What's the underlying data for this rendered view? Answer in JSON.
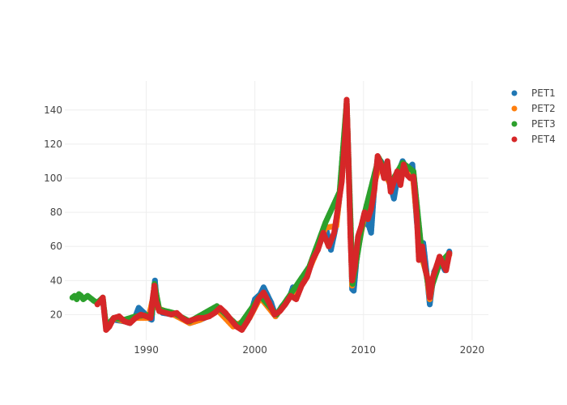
{
  "chart_data": {
    "type": "scatter",
    "title": "",
    "xlabel": "",
    "ylabel": "",
    "xlim": [
      1982.5,
      2021.5
    ],
    "ylim": [
      5,
      157
    ],
    "x_ticks": [
      1990,
      2000,
      2010,
      2020
    ],
    "x_tick_labels": [
      "1990",
      "2000",
      "2010",
      "2020"
    ],
    "y_ticks": [
      20,
      40,
      60,
      80,
      100,
      120,
      140
    ],
    "y_tick_labels": [
      "20",
      "40",
      "60",
      "80",
      "100",
      "120",
      "140"
    ],
    "grid": true,
    "legend_position": "top-right",
    "series": [
      {
        "name": "PET1",
        "color": "#1f77b4",
        "points": [
          [
            1986.0,
            28
          ],
          [
            1986.3,
            14
          ],
          [
            1987.0,
            17
          ],
          [
            1988.0,
            16
          ],
          [
            1988.5,
            15
          ],
          [
            1989.0,
            19
          ],
          [
            1989.3,
            24
          ],
          [
            1989.8,
            21
          ],
          [
            1990.2,
            18
          ],
          [
            1990.5,
            17
          ],
          [
            1990.7,
            34
          ],
          [
            1990.8,
            40
          ],
          [
            1991.0,
            25
          ],
          [
            1991.5,
            21
          ],
          [
            1992.5,
            20
          ],
          [
            1993.5,
            17
          ],
          [
            1994.0,
            15
          ],
          [
            1995.0,
            17
          ],
          [
            1996.0,
            20
          ],
          [
            1996.5,
            24
          ],
          [
            1997.0,
            22
          ],
          [
            1998.0,
            14
          ],
          [
            1998.8,
            12
          ],
          [
            1999.5,
            18
          ],
          [
            2000.0,
            29
          ],
          [
            2000.5,
            32
          ],
          [
            2000.8,
            36
          ],
          [
            2001.5,
            27
          ],
          [
            2001.9,
            19
          ],
          [
            2002.5,
            25
          ],
          [
            2003.2,
            30
          ],
          [
            2003.5,
            36
          ],
          [
            2004.0,
            33
          ],
          [
            2004.5,
            40
          ],
          [
            2004.9,
            45
          ],
          [
            2005.5,
            55
          ],
          [
            2006.0,
            62
          ],
          [
            2006.5,
            72
          ],
          [
            2007.0,
            58
          ],
          [
            2007.5,
            73
          ],
          [
            2007.9,
            95
          ],
          [
            2008.2,
            112
          ],
          [
            2008.45,
            144
          ],
          [
            2008.8,
            70
          ],
          [
            2008.95,
            35
          ],
          [
            2009.1,
            34
          ],
          [
            2009.4,
            55
          ],
          [
            2009.7,
            68
          ],
          [
            2010.0,
            75
          ],
          [
            2010.5,
            72
          ],
          [
            2010.7,
            68
          ],
          [
            2011.0,
            95
          ],
          [
            2011.3,
            112
          ],
          [
            2011.6,
            110
          ],
          [
            2012.0,
            105
          ],
          [
            2012.5,
            95
          ],
          [
            2012.8,
            88
          ],
          [
            2013.2,
            103
          ],
          [
            2013.6,
            110
          ],
          [
            2014.0,
            105
          ],
          [
            2014.5,
            108
          ],
          [
            2014.9,
            75
          ],
          [
            2015.2,
            55
          ],
          [
            2015.5,
            62
          ],
          [
            2015.8,
            45
          ],
          [
            2016.1,
            26
          ],
          [
            2016.5,
            45
          ],
          [
            2017.0,
            52
          ],
          [
            2017.5,
            46
          ],
          [
            2017.9,
            57
          ]
        ]
      },
      {
        "name": "PET2",
        "color": "#ff7f0e",
        "points": [
          [
            1986.0,
            29
          ],
          [
            1986.3,
            13
          ],
          [
            1987.0,
            18
          ],
          [
            1988.0,
            16
          ],
          [
            1989.0,
            18
          ],
          [
            1990.2,
            18
          ],
          [
            1990.7,
            32
          ],
          [
            1991.0,
            24
          ],
          [
            1992.5,
            20
          ],
          [
            1994.0,
            15
          ],
          [
            1995.0,
            17
          ],
          [
            1996.5,
            23
          ],
          [
            1998.0,
            13
          ],
          [
            1999.5,
            18
          ],
          [
            2000.5,
            30
          ],
          [
            2001.9,
            19
          ],
          [
            2003.2,
            30
          ],
          [
            2004.5,
            39
          ],
          [
            2005.5,
            54
          ],
          [
            2006.5,
            71
          ],
          [
            2007.5,
            72
          ],
          [
            2008.2,
            114
          ],
          [
            2008.45,
            143
          ],
          [
            2008.95,
            37
          ],
          [
            2009.4,
            56
          ],
          [
            2010.0,
            75
          ],
          [
            2011.0,
            97
          ],
          [
            2011.5,
            108
          ],
          [
            2012.5,
            96
          ],
          [
            2013.5,
            106
          ],
          [
            2014.5,
            104
          ],
          [
            2015.2,
            57
          ],
          [
            2015.8,
            44
          ],
          [
            2016.1,
            29
          ],
          [
            2016.5,
            44
          ],
          [
            2017.0,
            50
          ],
          [
            2017.9,
            55
          ]
        ]
      },
      {
        "name": "PET3",
        "color": "#2ca02c",
        "points": [
          [
            1983.2,
            30
          ],
          [
            1983.4,
            31
          ],
          [
            1983.6,
            29
          ],
          [
            1983.8,
            32
          ],
          [
            1984.0,
            31
          ],
          [
            1984.2,
            29
          ],
          [
            1984.4,
            30
          ],
          [
            1984.6,
            31
          ],
          [
            1984.8,
            30
          ],
          [
            1985.0,
            29
          ],
          [
            1985.2,
            28
          ],
          [
            1985.5,
            27
          ],
          [
            1986.0,
            30
          ],
          [
            1986.3,
            13
          ],
          [
            1987.0,
            18
          ],
          [
            1988.0,
            17
          ],
          [
            1989.0,
            19
          ],
          [
            1990.5,
            20
          ],
          [
            1990.75,
            38
          ],
          [
            1991.2,
            23
          ],
          [
            1992.5,
            21
          ],
          [
            1994.0,
            16
          ],
          [
            1996.5,
            25
          ],
          [
            1998.5,
            13
          ],
          [
            2000.5,
            31
          ],
          [
            2002.0,
            20
          ],
          [
            2003.5,
            34
          ],
          [
            2005.0,
            48
          ],
          [
            2006.5,
            74
          ],
          [
            2007.8,
            92
          ],
          [
            2008.45,
            145
          ],
          [
            2009.0,
            38
          ],
          [
            2010.0,
            77
          ],
          [
            2011.4,
            112
          ],
          [
            2012.5,
            97
          ],
          [
            2013.6,
            109
          ],
          [
            2014.6,
            104
          ],
          [
            2015.3,
            60
          ],
          [
            2016.1,
            33
          ],
          [
            2017.0,
            50
          ],
          [
            2017.9,
            56
          ]
        ]
      },
      {
        "name": "PET4",
        "color": "#d62728",
        "points": [
          [
            1985.5,
            26
          ],
          [
            1985.8,
            28
          ],
          [
            1986.0,
            30
          ],
          [
            1986.15,
            20
          ],
          [
            1986.3,
            11
          ],
          [
            1986.6,
            13
          ],
          [
            1987.0,
            18
          ],
          [
            1987.5,
            19
          ],
          [
            1988.0,
            16
          ],
          [
            1988.5,
            15
          ],
          [
            1989.0,
            18
          ],
          [
            1989.5,
            20
          ],
          [
            1990.0,
            19
          ],
          [
            1990.4,
            18
          ],
          [
            1990.6,
            30
          ],
          [
            1990.75,
            37
          ],
          [
            1990.9,
            28
          ],
          [
            1991.2,
            22
          ],
          [
            1991.8,
            21
          ],
          [
            1992.3,
            20
          ],
          [
            1992.8,
            21
          ],
          [
            1993.3,
            18
          ],
          [
            1993.8,
            16
          ],
          [
            1994.3,
            17
          ],
          [
            1994.8,
            18
          ],
          [
            1995.3,
            18
          ],
          [
            1995.8,
            19
          ],
          [
            1996.3,
            21
          ],
          [
            1996.8,
            24
          ],
          [
            1997.3,
            21
          ],
          [
            1997.8,
            17
          ],
          [
            1998.3,
            13
          ],
          [
            1998.8,
            11
          ],
          [
            1999.3,
            16
          ],
          [
            1999.8,
            22
          ],
          [
            2000.3,
            29
          ],
          [
            2000.8,
            33
          ],
          [
            2001.3,
            27
          ],
          [
            2001.8,
            20
          ],
          [
            2002.3,
            22
          ],
          [
            2002.8,
            26
          ],
          [
            2003.3,
            31
          ],
          [
            2003.8,
            29
          ],
          [
            2004.3,
            37
          ],
          [
            2004.8,
            42
          ],
          [
            2005.3,
            52
          ],
          [
            2005.8,
            58
          ],
          [
            2006.3,
            68
          ],
          [
            2006.8,
            60
          ],
          [
            2007.3,
            68
          ],
          [
            2007.7,
            85
          ],
          [
            2008.0,
            98
          ],
          [
            2008.3,
            125
          ],
          [
            2008.45,
            146
          ],
          [
            2008.6,
            115
          ],
          [
            2008.8,
            65
          ],
          [
            2008.95,
            40
          ],
          [
            2009.2,
            48
          ],
          [
            2009.5,
            66
          ],
          [
            2009.8,
            72
          ],
          [
            2010.1,
            80
          ],
          [
            2010.4,
            76
          ],
          [
            2010.7,
            82
          ],
          [
            2011.0,
            93
          ],
          [
            2011.3,
            113
          ],
          [
            2011.6,
            108
          ],
          [
            2011.9,
            100
          ],
          [
            2012.2,
            110
          ],
          [
            2012.5,
            92
          ],
          [
            2012.8,
            98
          ],
          [
            2013.1,
            104
          ],
          [
            2013.4,
            96
          ],
          [
            2013.7,
            108
          ],
          [
            2014.0,
            102
          ],
          [
            2014.3,
            100
          ],
          [
            2014.6,
            101
          ],
          [
            2014.9,
            78
          ],
          [
            2015.1,
            52
          ],
          [
            2015.4,
            60
          ],
          [
            2015.7,
            46
          ],
          [
            2015.95,
            40
          ],
          [
            2016.1,
            30
          ],
          [
            2016.4,
            42
          ],
          [
            2016.7,
            48
          ],
          [
            2017.0,
            54
          ],
          [
            2017.3,
            50
          ],
          [
            2017.6,
            46
          ],
          [
            2017.9,
            56
          ]
        ]
      }
    ]
  }
}
